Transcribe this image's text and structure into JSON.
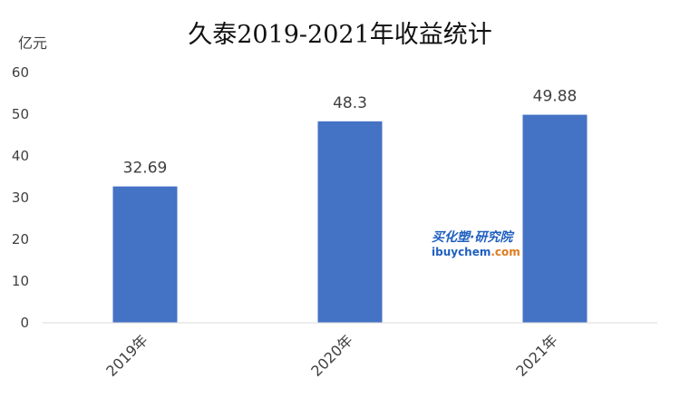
{
  "chart_data": {
    "type": "bar",
    "title": "久泰2019-2021年收益统计",
    "unit_label": "亿元",
    "categories": [
      "2019年",
      "2020年",
      "2021年"
    ],
    "values": [
      32.69,
      48.3,
      49.88
    ],
    "value_labels": [
      "32.69",
      "48.3",
      "49.88"
    ],
    "ylim": [
      0,
      60
    ],
    "yticks": [
      "0",
      "10",
      "20",
      "30",
      "40",
      "50",
      "60"
    ],
    "xlabel": "",
    "ylabel": "",
    "grid": false,
    "legend": "none",
    "bar_color": "#4472C4",
    "axis_color": "#D9D9D9"
  },
  "watermark": {
    "line1": "买化塑·研究院",
    "line2_main": "ibuychem",
    "line2_suffix": ".com",
    "brand_color": "#1F5FBF",
    "accent_color": "#E07B1F"
  }
}
